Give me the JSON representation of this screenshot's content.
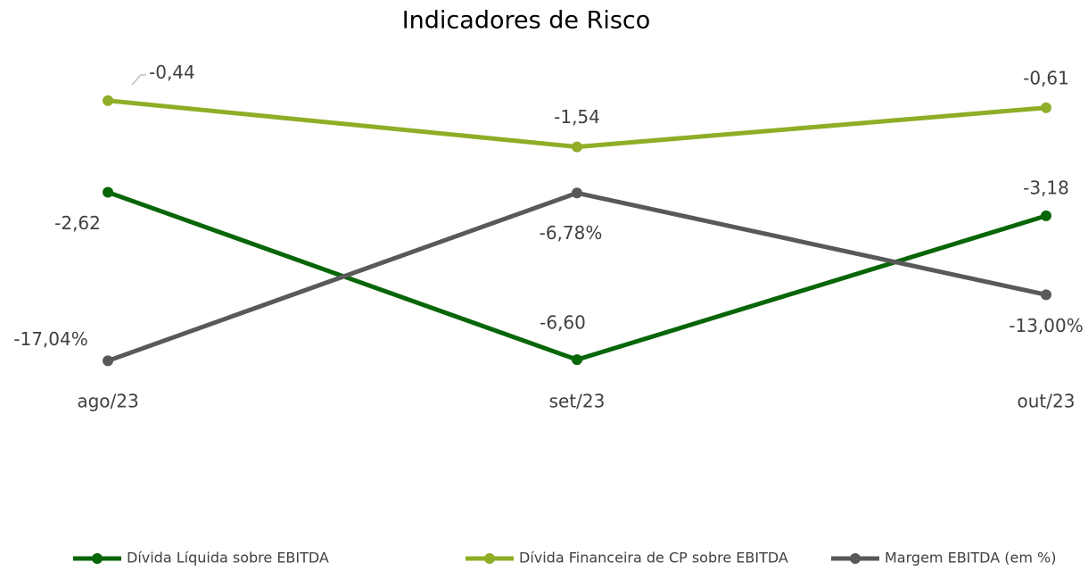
{
  "chart_data": {
    "type": "line",
    "title": "Indicadores de Risco",
    "categories": [
      "ago/23",
      "set/23",
      "out/23"
    ],
    "ylim": [
      -7,
      0
    ],
    "y2lim": [
      -18,
      0
    ],
    "series": [
      {
        "name": "Dívida Líquida sobre EBITDA",
        "color": "#076607",
        "values": [
          -2.62,
          -6.6,
          -3.18
        ],
        "value_labels": [
          "-2,62",
          "-6,60",
          "-3,18"
        ]
      },
      {
        "name": "Dívida Financeira de CP sobre EBITDA",
        "color": "#8fad26",
        "values": [
          -0.44,
          -1.54,
          -0.61
        ],
        "value_labels": [
          "-0,44",
          "-1,54",
          "-0,61"
        ]
      },
      {
        "name": "Margem EBITDA (em %)",
        "color": "#595959",
        "axis": "y2",
        "values": [
          -17.04,
          -6.78,
          -13.0
        ],
        "value_labels": [
          "-17,04%",
          "-6,78%",
          "-13,00%"
        ]
      }
    ]
  }
}
